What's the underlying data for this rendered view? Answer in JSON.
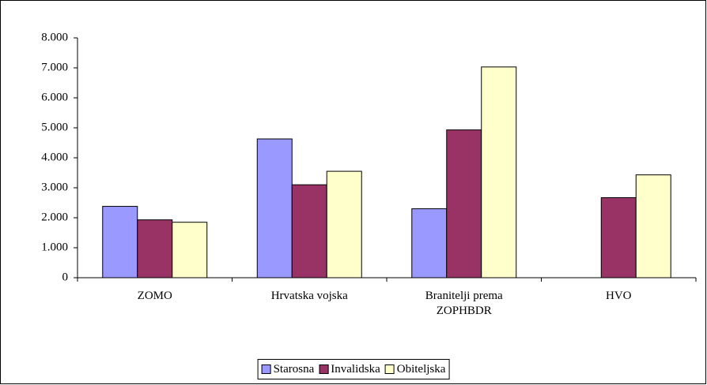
{
  "chart_data": {
    "type": "bar",
    "categories": [
      "ZOMO",
      "Hrvatska vojska",
      "Branitelji prema ZOPHBDR",
      "HVO"
    ],
    "series": [
      {
        "name": "Starosna",
        "color": "#9999ff",
        "values": [
          2380,
          4630,
          2300,
          0
        ]
      },
      {
        "name": "Invalidska",
        "color": "#993366",
        "values": [
          1930,
          3100,
          4930,
          2670
        ]
      },
      {
        "name": "Obiteljska",
        "color": "#ffffcc",
        "values": [
          1850,
          3550,
          7030,
          3430
        ]
      }
    ],
    "ylim": [
      0,
      8000
    ],
    "yticks": [
      0,
      {
        "value": 1000,
        "label": "1.000"
      },
      {
        "value": 2000,
        "label": "2.000"
      },
      {
        "value": 3000,
        "label": "3.000"
      },
      {
        "value": 4000,
        "label": "4.000"
      },
      {
        "value": 5000,
        "label": "5.000"
      },
      {
        "value": 6000,
        "label": "6.000"
      },
      {
        "value": 7000,
        "label": "7.000"
      },
      {
        "value": 8000,
        "label": "8.000"
      }
    ],
    "grid": false,
    "legend": "bottom"
  }
}
